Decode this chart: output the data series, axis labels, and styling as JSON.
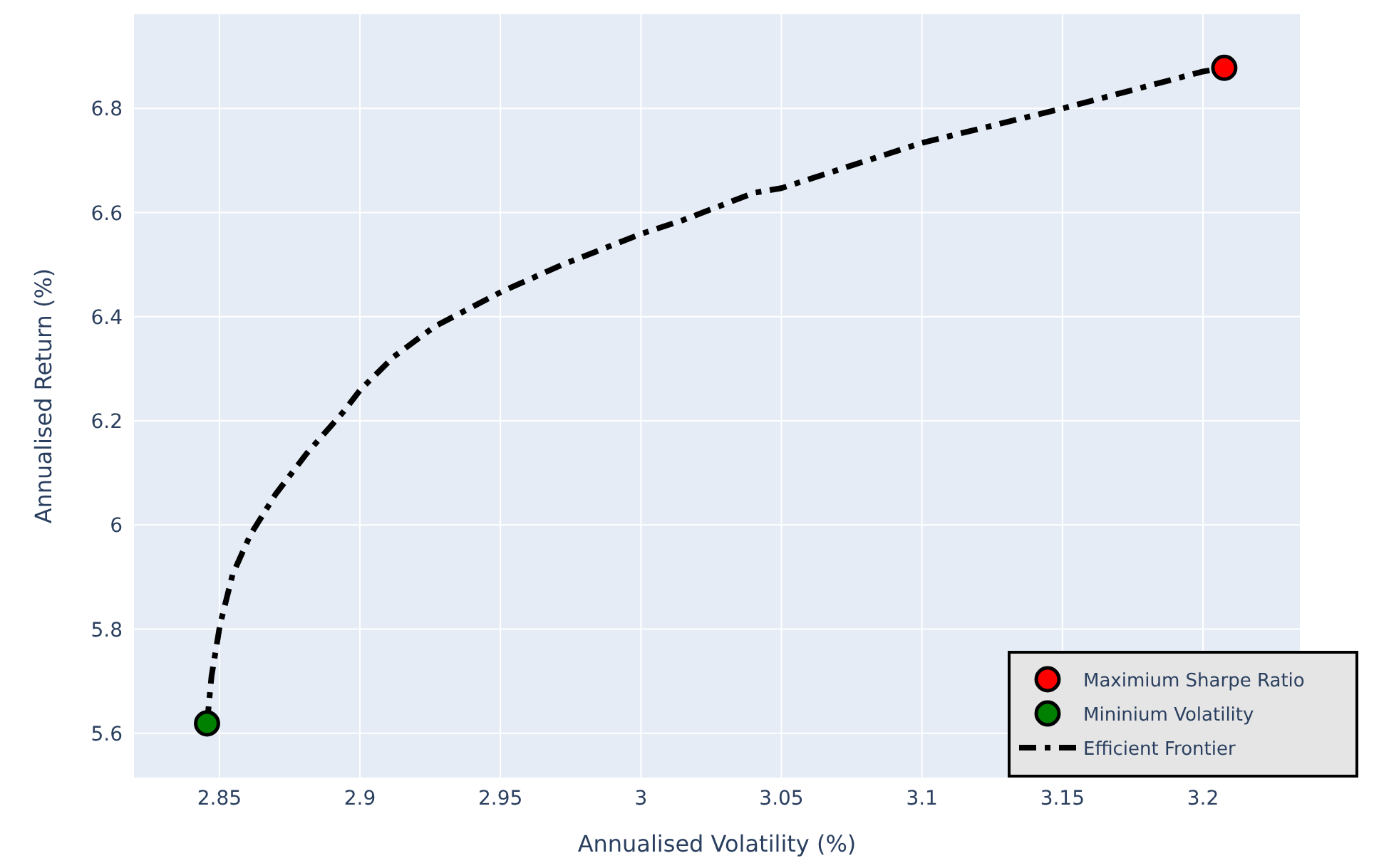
{
  "chart_data": {
    "type": "line",
    "xlabel": "Annualised Volatility (%)",
    "ylabel": "Annualised Return (%)",
    "xlim": [
      2.8196,
      3.2345
    ],
    "ylim": [
      5.515,
      6.981
    ],
    "xticks": [
      2.85,
      2.9,
      2.95,
      3,
      3.05,
      3.1,
      3.15,
      3.2
    ],
    "yticks": [
      5.6,
      5.8,
      6,
      6.2,
      6.4,
      6.6,
      6.8
    ],
    "grid": true,
    "legend": "bottom right",
    "series": [
      {
        "name": "Maximium Sharpe Ratio",
        "type": "scatter",
        "marker": "circle",
        "color": "#ff0000",
        "x": [
          3.2076
        ],
        "values": [
          6.878
        ]
      },
      {
        "name": "Mininium Volatility",
        "type": "scatter",
        "marker": "circle",
        "color": "#008000",
        "x": [
          2.8456
        ],
        "values": [
          5.619
        ]
      },
      {
        "name": "Efficient Frontier",
        "line_style": "dashdot",
        "color": "#000000",
        "x": [
          2.8456,
          2.8472,
          2.8502,
          2.8547,
          2.861,
          2.8701,
          2.881,
          2.8939,
          2.9002,
          2.912,
          2.9265,
          2.95,
          2.9716,
          3.0,
          3.0152,
          3.0402,
          3.05,
          3.1,
          3.15,
          3.2,
          3.2076
        ],
        "values": [
          5.619,
          5.71,
          5.808,
          5.905,
          5.981,
          6.06,
          6.137,
          6.216,
          6.26,
          6.323,
          6.381,
          6.447,
          6.499,
          6.559,
          6.586,
          6.638,
          6.647,
          6.734,
          6.8,
          6.871,
          6.878
        ]
      }
    ]
  }
}
